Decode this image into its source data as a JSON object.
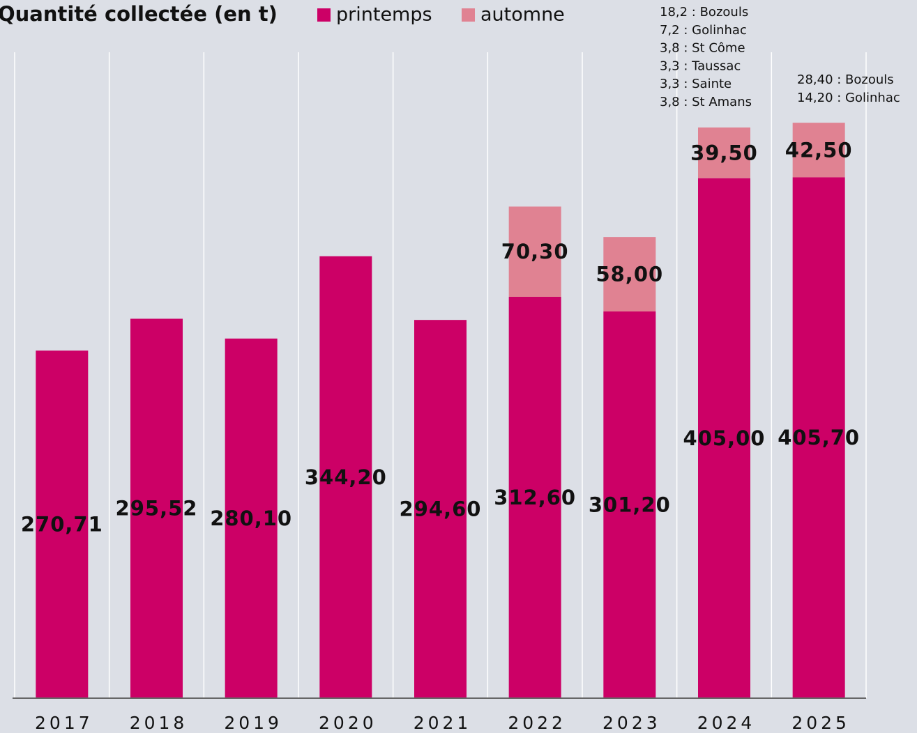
{
  "chart_data": {
    "type": "stacked-bar",
    "title": "Quantité collectée (en t)",
    "categories": [
      "2017",
      "2018",
      "2019",
      "2020",
      "2021",
      "2022",
      "2023",
      "2024",
      "2025"
    ],
    "series": [
      {
        "name": "printemps",
        "color": "#cc0066",
        "values": [
          270.71,
          295.52,
          280.1,
          344.2,
          294.6,
          312.6,
          301.2,
          405.0,
          405.7
        ],
        "value_labels": [
          "270,71",
          "295,52",
          "280,10",
          "344,20",
          "294,60",
          "312,60",
          "301,20",
          "405,00",
          "405,70"
        ]
      },
      {
        "name": "automne",
        "color": "#e08292",
        "values": [
          null,
          null,
          null,
          null,
          null,
          70.3,
          58.0,
          39.5,
          42.5
        ],
        "value_labels": [
          null,
          null,
          null,
          null,
          null,
          "70,30",
          "58,00",
          "39,50",
          "42,50"
        ]
      }
    ],
    "annotations": [
      {
        "category": "2024",
        "lines": [
          "18,2 : Bozouls",
          "7,2 : Golinhac",
          "3,8 : St Côme",
          "3,3 : Taussac",
          "3,3 : Sainte",
          "3,8 : St Amans"
        ]
      },
      {
        "category": "2025",
        "lines": [
          "28,40 : Bozouls",
          "14,20 : Golinhac"
        ]
      }
    ],
    "ylim": [
      0,
      540
    ],
    "grid": true,
    "legend": "top"
  }
}
